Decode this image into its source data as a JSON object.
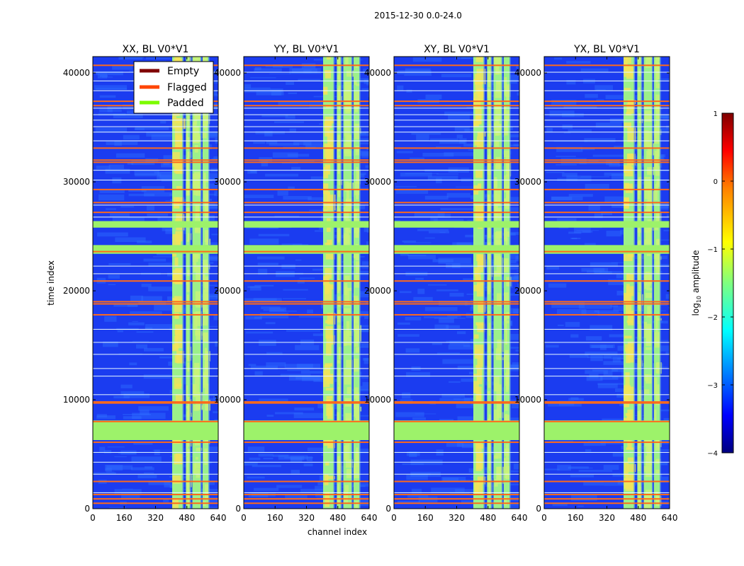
{
  "chart_data": {
    "type": "heatmap",
    "suptitle": "2015-12-30 0.0-24.0",
    "xlabel": "channel index",
    "ylabel": "time index",
    "xlim": [
      0,
      640
    ],
    "ylim": [
      0,
      41500
    ],
    "x_ticks": [
      0,
      160,
      320,
      480,
      640
    ],
    "x_tick_labels": [
      "0",
      "160",
      "320",
      "480",
      "640"
    ],
    "y_ticks": [
      0,
      10000,
      20000,
      30000,
      40000
    ],
    "y_tick_labels": [
      "0",
      "10000",
      "20000",
      "30000",
      "40000"
    ],
    "panels": [
      {
        "title": "XX, BL V0*V1",
        "active_channel_ranges": [
          [
            405,
            463
          ],
          [
            475,
            500
          ],
          [
            508,
            555
          ],
          [
            560,
            595
          ]
        ]
      },
      {
        "title": "YY, BL V0*V1",
        "active_channel_ranges": [
          [
            405,
            463
          ],
          [
            475,
            500
          ],
          [
            508,
            555
          ],
          [
            560,
            595
          ]
        ]
      },
      {
        "title": "XY, BL V0*V1",
        "active_channel_ranges": [
          [
            405,
            463
          ],
          [
            475,
            500
          ],
          [
            508,
            555
          ],
          [
            560,
            595
          ]
        ]
      },
      {
        "title": "YX, BL V0*V1",
        "active_channel_ranges": [
          [
            405,
            463
          ],
          [
            475,
            500
          ],
          [
            508,
            555
          ],
          [
            560,
            595
          ]
        ]
      }
    ],
    "padded_time_ranges": [
      [
        6300,
        8100
      ],
      [
        23400,
        24200
      ],
      [
        25800,
        26400
      ]
    ],
    "flagged_time_rows": [
      500,
      900,
      1300,
      2500,
      6100,
      8000,
      9700,
      9800,
      17800,
      18800,
      19000,
      20900,
      23600,
      27200,
      28100,
      29300,
      31800,
      32000,
      33100,
      37000,
      37400,
      40700
    ],
    "white_gap_rows": [
      1500,
      3200,
      4300,
      5200,
      10500,
      12200,
      12900,
      14200,
      15300,
      16500,
      21600,
      22300,
      26800,
      27900,
      30200,
      31100,
      33800,
      34600,
      35100,
      35700,
      36200,
      36800,
      38400,
      39300,
      40100
    ],
    "legend": {
      "position": "top-right of first panel",
      "entries": [
        {
          "label": "Empty",
          "color": "#800000"
        },
        {
          "label": "Flagged",
          "color": "#ff4500"
        },
        {
          "label": "Padded",
          "color": "#7cfc00"
        }
      ]
    },
    "colorbar": {
      "label": "log10 amplitude",
      "range": [
        -4,
        1
      ],
      "ticks": [
        1,
        0,
        -1,
        -2,
        -3,
        -4
      ],
      "tick_labels": [
        "1",
        "0",
        "−1",
        "−2",
        "−3",
        "−4"
      ]
    }
  },
  "colors": {
    "background_low": "#1b3cf0",
    "background_mid": "#2f6cff",
    "active_column": "#9cf08a",
    "active_hot": "#f2e45a",
    "padded": "#9df26a",
    "flagged": "#ff6a1a",
    "gap": "#e8f8ff"
  }
}
